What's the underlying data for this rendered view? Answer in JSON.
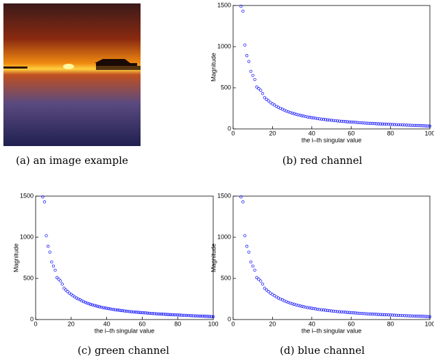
{
  "image": {
    "caption": "(a) an image example"
  },
  "chart_data": [
    {
      "type": "scatter",
      "caption": "(b) red channel",
      "xlabel": "the i–th singular value",
      "ylabel": "Magnitude",
      "color": "#0000ff",
      "xlim": [
        0,
        100
      ],
      "ylim": [
        0,
        1500
      ],
      "xticks": [
        0,
        20,
        40,
        60,
        80,
        100
      ],
      "yticks": [
        0,
        500,
        1000,
        1500
      ],
      "x": [
        4,
        5,
        6,
        7,
        8,
        9,
        10,
        11,
        12,
        13,
        14,
        15,
        16,
        17,
        18,
        19,
        20,
        21,
        22,
        23,
        24,
        25,
        26,
        27,
        28,
        29,
        30,
        31,
        32,
        33,
        34,
        35,
        36,
        37,
        38,
        39,
        40,
        41,
        42,
        43,
        44,
        45,
        46,
        47,
        48,
        49,
        50,
        51,
        52,
        53,
        54,
        55,
        56,
        57,
        58,
        59,
        60,
        61,
        62,
        63,
        64,
        65,
        66,
        67,
        68,
        69,
        70,
        71,
        72,
        73,
        74,
        75,
        76,
        77,
        78,
        79,
        80,
        81,
        82,
        83,
        84,
        85,
        86,
        87,
        88,
        89,
        90,
        91,
        92,
        93,
        94,
        95,
        96,
        97,
        98,
        99,
        100
      ],
      "values": [
        1490,
        1430,
        1020,
        890,
        820,
        700,
        650,
        600,
        510,
        490,
        470,
        430,
        380,
        360,
        340,
        320,
        305,
        290,
        275,
        262,
        250,
        240,
        228,
        218,
        208,
        200,
        192,
        185,
        178,
        172,
        166,
        160,
        155,
        150,
        145,
        141,
        137,
        133,
        129,
        125,
        122,
        119,
        116,
        113,
        110,
        107,
        104,
        102,
        100,
        97,
        95,
        93,
        91,
        89,
        87,
        85,
        83,
        81,
        80,
        78,
        76,
        75,
        73,
        72,
        70,
        69,
        67,
        66,
        65,
        63,
        62,
        61,
        60,
        58,
        57,
        56,
        55,
        54,
        53,
        52,
        51,
        50,
        49,
        48,
        47,
        46,
        45,
        44,
        43,
        42,
        41,
        40,
        39,
        38,
        37,
        36,
        35
      ]
    },
    {
      "type": "scatter",
      "caption": "(c) green channel",
      "xlabel": "the i–th singular value",
      "ylabel": "Magnitude",
      "color": "#0000ff",
      "xlim": [
        0,
        100
      ],
      "ylim": [
        0,
        1500
      ],
      "xticks": [
        0,
        20,
        40,
        60,
        80,
        100
      ],
      "yticks": [
        0,
        500,
        1000,
        1500
      ],
      "x": [
        4,
        5,
        6,
        7,
        8,
        9,
        10,
        11,
        12,
        13,
        14,
        15,
        16,
        17,
        18,
        19,
        20,
        21,
        22,
        23,
        24,
        25,
        26,
        27,
        28,
        29,
        30,
        31,
        32,
        33,
        34,
        35,
        36,
        37,
        38,
        39,
        40,
        41,
        42,
        43,
        44,
        45,
        46,
        47,
        48,
        49,
        50,
        51,
        52,
        53,
        54,
        55,
        56,
        57,
        58,
        59,
        60,
        61,
        62,
        63,
        64,
        65,
        66,
        67,
        68,
        69,
        70,
        71,
        72,
        73,
        74,
        75,
        76,
        77,
        78,
        79,
        80,
        81,
        82,
        83,
        84,
        85,
        86,
        87,
        88,
        89,
        90,
        91,
        92,
        93,
        94,
        95,
        96,
        97,
        98,
        99,
        100
      ],
      "values": [
        1490,
        1430,
        1020,
        890,
        820,
        700,
        650,
        600,
        510,
        490,
        470,
        430,
        380,
        360,
        340,
        320,
        305,
        290,
        275,
        262,
        250,
        240,
        228,
        218,
        208,
        200,
        192,
        185,
        178,
        172,
        166,
        160,
        155,
        150,
        145,
        141,
        137,
        133,
        129,
        125,
        122,
        119,
        116,
        113,
        110,
        107,
        104,
        102,
        100,
        97,
        95,
        93,
        91,
        89,
        87,
        85,
        83,
        81,
        80,
        78,
        76,
        75,
        73,
        72,
        70,
        69,
        67,
        66,
        65,
        63,
        62,
        61,
        60,
        58,
        57,
        56,
        55,
        54,
        53,
        52,
        51,
        50,
        49,
        48,
        47,
        46,
        45,
        44,
        43,
        42,
        41,
        40,
        39,
        38,
        37,
        36,
        35
      ]
    },
    {
      "type": "scatter",
      "caption": "(d) blue channel",
      "xlabel": "the i–th singular value",
      "ylabel": "Magnitude",
      "color": "#0000ff",
      "xlim": [
        0,
        100
      ],
      "ylim": [
        0,
        1500
      ],
      "xticks": [
        0,
        20,
        40,
        60,
        80,
        100
      ],
      "yticks": [
        0,
        500,
        1000,
        1500
      ],
      "x": [
        4,
        5,
        6,
        7,
        8,
        9,
        10,
        11,
        12,
        13,
        14,
        15,
        16,
        17,
        18,
        19,
        20,
        21,
        22,
        23,
        24,
        25,
        26,
        27,
        28,
        29,
        30,
        31,
        32,
        33,
        34,
        35,
        36,
        37,
        38,
        39,
        40,
        41,
        42,
        43,
        44,
        45,
        46,
        47,
        48,
        49,
        50,
        51,
        52,
        53,
        54,
        55,
        56,
        57,
        58,
        59,
        60,
        61,
        62,
        63,
        64,
        65,
        66,
        67,
        68,
        69,
        70,
        71,
        72,
        73,
        74,
        75,
        76,
        77,
        78,
        79,
        80,
        81,
        82,
        83,
        84,
        85,
        86,
        87,
        88,
        89,
        90,
        91,
        92,
        93,
        94,
        95,
        96,
        97,
        98,
        99,
        100
      ],
      "values": [
        1490,
        1430,
        1020,
        890,
        820,
        700,
        650,
        600,
        510,
        490,
        470,
        430,
        380,
        360,
        340,
        320,
        305,
        290,
        275,
        262,
        250,
        240,
        228,
        218,
        208,
        200,
        192,
        185,
        178,
        172,
        166,
        160,
        155,
        150,
        145,
        141,
        137,
        133,
        129,
        125,
        122,
        119,
        116,
        113,
        110,
        107,
        104,
        102,
        100,
        97,
        95,
        93,
        91,
        89,
        87,
        85,
        83,
        81,
        80,
        78,
        76,
        75,
        73,
        72,
        70,
        69,
        67,
        66,
        65,
        63,
        62,
        61,
        60,
        58,
        57,
        56,
        55,
        54,
        53,
        52,
        51,
        50,
        49,
        48,
        47,
        46,
        45,
        44,
        43,
        42,
        41,
        40,
        39,
        38,
        37,
        36,
        35
      ]
    }
  ]
}
